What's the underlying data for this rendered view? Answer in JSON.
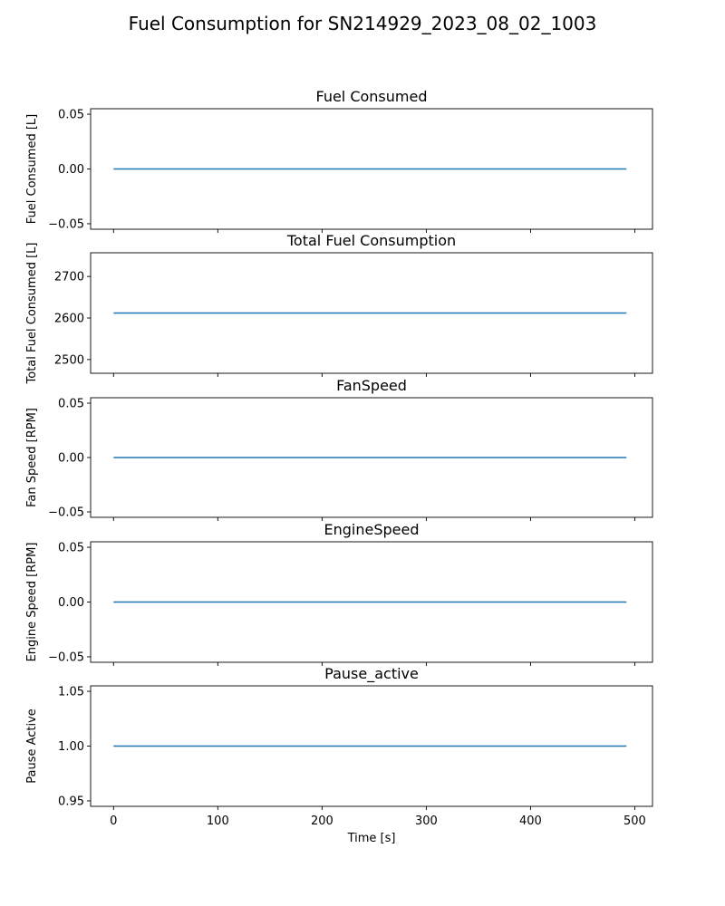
{
  "figure": {
    "title": "Fuel Consumption for SN214929_2023_08_02_1003"
  },
  "chart_data": [
    {
      "type": "line",
      "title": "Fuel Consumed",
      "ylabel": "Fuel Consumed [L]",
      "xlabel": "",
      "xlim": [
        -22,
        517
      ],
      "ylim": [
        -0.055,
        0.055
      ],
      "yticks": [
        -0.05,
        0.0,
        0.05
      ],
      "ytick_labels": [
        "−0.05",
        "0.00",
        "0.05"
      ],
      "xticks": [
        0,
        100,
        200,
        300,
        400,
        500
      ],
      "xtick_labels": [],
      "series": [
        {
          "x": [
            0,
            492
          ],
          "y": [
            0,
            0
          ],
          "color": "#1f77b4"
        }
      ]
    },
    {
      "type": "line",
      "title": "Total Fuel Consumption",
      "ylabel": "Total Fuel Consumed [L]",
      "xlabel": "",
      "xlim": [
        -22,
        517
      ],
      "ylim": [
        2467,
        2757
      ],
      "yticks": [
        2500,
        2600,
        2700
      ],
      "ytick_labels": [
        "2500",
        "2600",
        "2700"
      ],
      "xticks": [
        0,
        100,
        200,
        300,
        400,
        500
      ],
      "xtick_labels": [],
      "series": [
        {
          "x": [
            0,
            492
          ],
          "y": [
            2612,
            2612
          ],
          "color": "#1f77b4"
        }
      ]
    },
    {
      "type": "line",
      "title": "FanSpeed",
      "ylabel": "Fan Speed [RPM]",
      "xlabel": "",
      "xlim": [
        -22,
        517
      ],
      "ylim": [
        -0.055,
        0.055
      ],
      "yticks": [
        -0.05,
        0.0,
        0.05
      ],
      "ytick_labels": [
        "−0.05",
        "0.00",
        "0.05"
      ],
      "xticks": [
        0,
        100,
        200,
        300,
        400,
        500
      ],
      "xtick_labels": [],
      "series": [
        {
          "x": [
            0,
            492
          ],
          "y": [
            0,
            0
          ],
          "color": "#1f77b4"
        }
      ]
    },
    {
      "type": "line",
      "title": "EngineSpeed",
      "ylabel": "Engine Speed [RPM]",
      "xlabel": "",
      "xlim": [
        -22,
        517
      ],
      "ylim": [
        -0.055,
        0.055
      ],
      "yticks": [
        -0.05,
        0.0,
        0.05
      ],
      "ytick_labels": [
        "−0.05",
        "0.00",
        "0.05"
      ],
      "xticks": [
        0,
        100,
        200,
        300,
        400,
        500
      ],
      "xtick_labels": [],
      "series": [
        {
          "x": [
            0,
            492
          ],
          "y": [
            0,
            0
          ],
          "color": "#1f77b4"
        }
      ]
    },
    {
      "type": "line",
      "title": "Pause_active",
      "ylabel": "Pause Active",
      "xlabel": "Time [s]",
      "xlim": [
        -22,
        517
      ],
      "ylim": [
        0.945,
        1.055
      ],
      "yticks": [
        0.95,
        1.0,
        1.05
      ],
      "ytick_labels": [
        "0.95",
        "1.00",
        "1.05"
      ],
      "xticks": [
        0,
        100,
        200,
        300,
        400,
        500
      ],
      "xtick_labels": [
        "0",
        "100",
        "200",
        "300",
        "400",
        "500"
      ],
      "series": [
        {
          "x": [
            0,
            492
          ],
          "y": [
            1,
            1
          ],
          "color": "#1f77b4"
        }
      ]
    }
  ]
}
